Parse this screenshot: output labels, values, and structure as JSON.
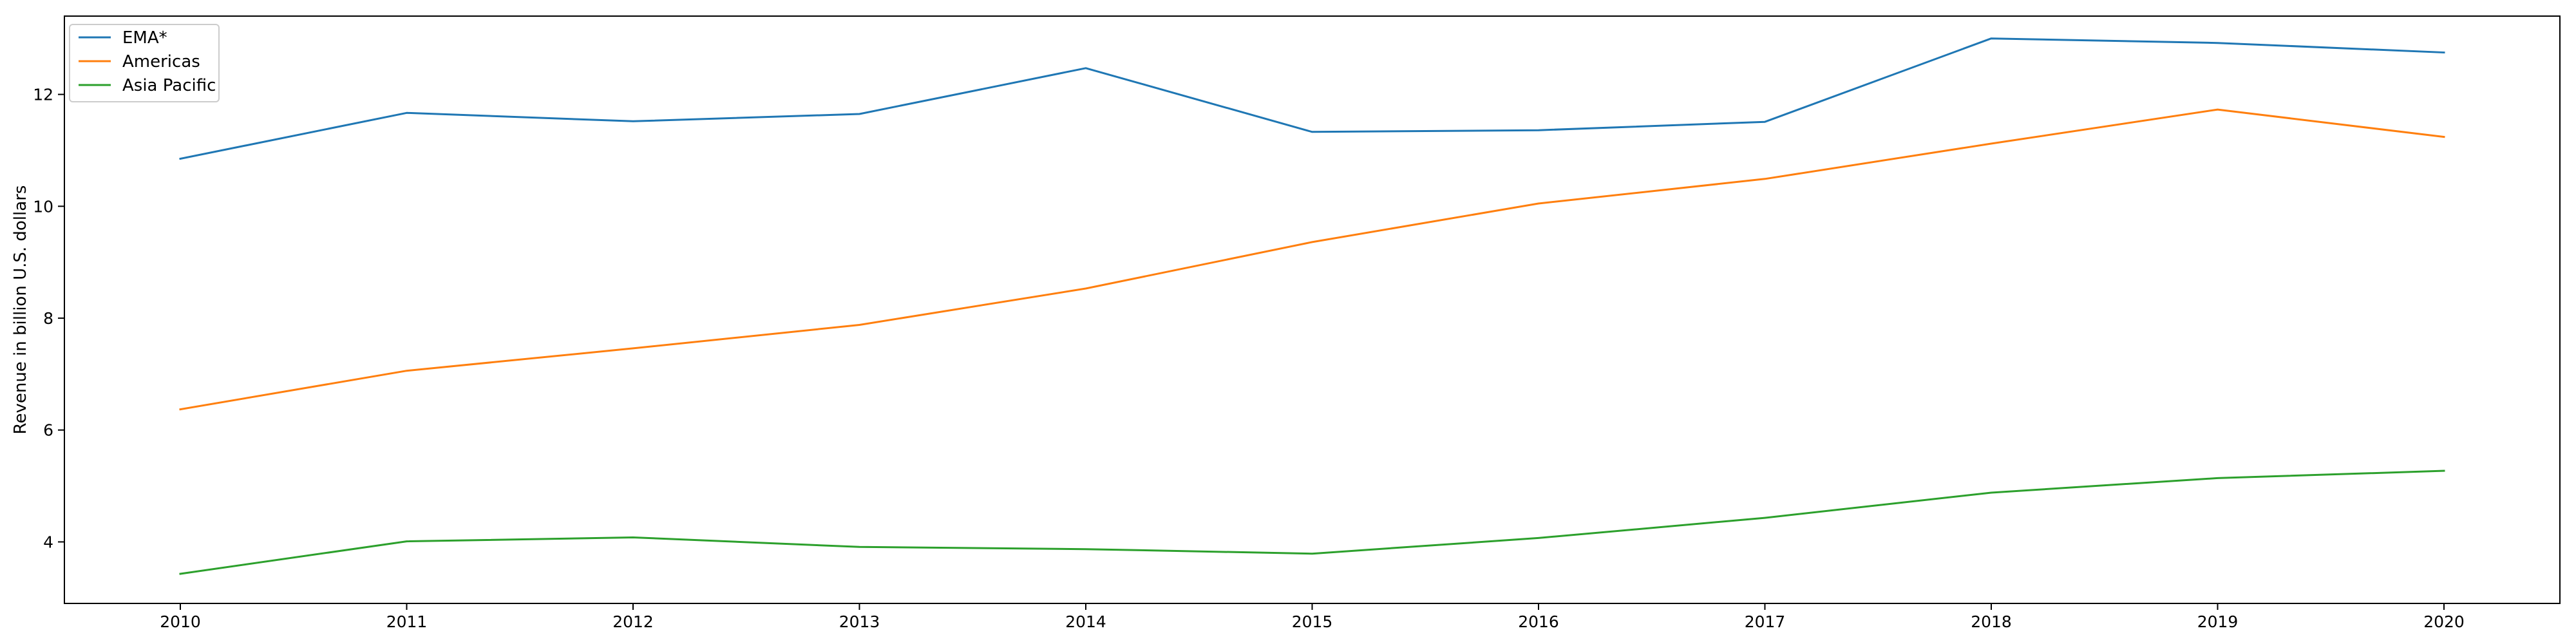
{
  "chart_data": {
    "type": "line",
    "title": "",
    "xlabel": "",
    "ylabel": "Revenue in billion U.S. dollars",
    "x": [
      "2010",
      "2011",
      "2012",
      "2013",
      "2014",
      "2015",
      "2016",
      "2017",
      "2018",
      "2019",
      "2020"
    ],
    "ylim": [
      2.9,
      13.4
    ],
    "yticks": [
      "4",
      "6",
      "8",
      "10",
      "12"
    ],
    "grid": false,
    "legend_position": "top-left",
    "series": [
      {
        "name": "EMA*",
        "color": "#1f77b4",
        "values": [
          10.85,
          11.67,
          11.52,
          11.65,
          12.47,
          11.33,
          11.36,
          11.51,
          13.0,
          12.92,
          12.75
        ]
      },
      {
        "name": "Americas",
        "color": "#ff7f0e",
        "values": [
          6.37,
          7.06,
          7.46,
          7.88,
          8.53,
          9.36,
          10.05,
          10.49,
          11.12,
          11.73,
          11.24
        ]
      },
      {
        "name": "Asia Pacific",
        "color": "#2ca02c",
        "values": [
          3.43,
          4.01,
          4.08,
          3.91,
          3.87,
          3.79,
          4.07,
          4.43,
          4.88,
          5.14,
          5.27
        ]
      }
    ]
  }
}
